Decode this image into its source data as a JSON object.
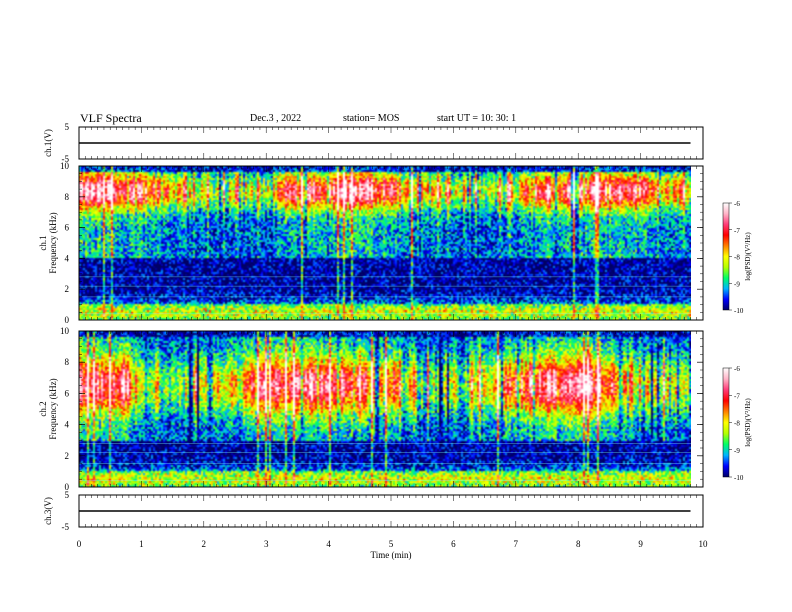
{
  "header": {
    "title": "VLF Spectra",
    "date": "Dec.3  , 2022",
    "station": "station= MOS",
    "start": "start  UT  =   10: 30: 1"
  },
  "chart_data": [
    {
      "type": "line",
      "name": "ch1-waveform",
      "ylabel": "ch.1(V)",
      "ylim": [
        -5,
        5
      ],
      "yticks": [
        "5",
        "-5"
      ],
      "xlim": [
        0,
        10
      ],
      "x": [
        0,
        9.8
      ],
      "y": [
        0,
        0
      ]
    },
    {
      "type": "heatmap",
      "name": "ch1-spectrogram",
      "ylabel": "ch.1\nFrequency (kHz)",
      "ylim": [
        0,
        10
      ],
      "yticks": [
        "0",
        "2",
        "4",
        "6",
        "8",
        "10"
      ],
      "xlim": [
        0,
        10
      ],
      "data_xmax": 9.8,
      "intensity_profile": {
        "peak_band_khz": [
          7.5,
          9.2
        ],
        "base_band_khz": [
          0,
          1
        ],
        "quiet_band_khz": [
          1,
          4
        ],
        "vertical_bursts": true
      }
    },
    {
      "type": "heatmap",
      "name": "ch2-spectrogram",
      "ylabel": "ch.2\nFrequency (kHz)",
      "ylim": [
        0,
        10
      ],
      "yticks": [
        "0",
        "2",
        "4",
        "6",
        "8",
        "10"
      ],
      "xlim": [
        0,
        10
      ],
      "data_xmax": 9.8,
      "intensity_profile": {
        "peak_band_khz": [
          5,
          8
        ],
        "base_band_khz": [
          0,
          1
        ],
        "quiet_band_khz": [
          1,
          3
        ],
        "vertical_bursts": true
      }
    },
    {
      "type": "line",
      "name": "ch3-waveform",
      "ylabel": "ch.3(V)",
      "ylim": [
        -5,
        5
      ],
      "yticks": [
        "5",
        "-5"
      ],
      "xlim": [
        0,
        10
      ],
      "x": [
        0,
        9.8
      ],
      "y": [
        0,
        0
      ]
    }
  ],
  "xaxis": {
    "label": "Time  (min)",
    "ticks": [
      "0",
      "1",
      "2",
      "3",
      "4",
      "5",
      "6",
      "7",
      "8",
      "9",
      "10"
    ]
  },
  "colorbar": {
    "label": "log(PSD)(V²/Hz)",
    "ticks": [
      "-6",
      "-7",
      "-8",
      "-9",
      "-10"
    ],
    "range": [
      -10,
      -6
    ],
    "colors": [
      "#000066",
      "#0000ff",
      "#00b4ff",
      "#00ff66",
      "#b4ff00",
      "#ffff00",
      "#ff8000",
      "#ff0000",
      "#ff3c78",
      "#ffb4c8",
      "#ffffff"
    ]
  }
}
